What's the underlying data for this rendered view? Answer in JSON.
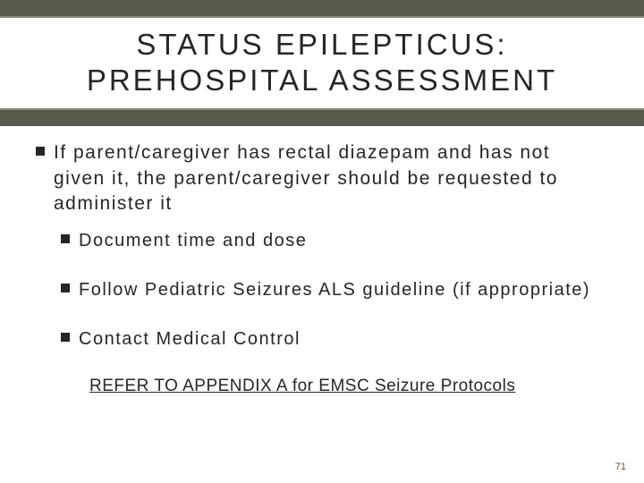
{
  "title_line1": "STATUS EPILEPTICUS:",
  "title_line2": "PREHOSPITAL ASSESSMENT",
  "main_bullet": "If parent/caregiver has rectal diazepam and has not given it, the parent/caregiver should be requested to administer it",
  "sub_bullets": [
    "Document time and dose",
    "Follow Pediatric Seizures ALS guideline (if appropriate)",
    "Contact Medical Control"
  ],
  "appendix_text": "REFER TO APPENDIX A for EMSC Seizure Protocols",
  "page_number": "71",
  "colors": {
    "header_bar": "#5a5a4a",
    "border": "#8a8a7a",
    "text": "#262626",
    "page_num": "#7a4a2a",
    "background": "#ffffff"
  }
}
